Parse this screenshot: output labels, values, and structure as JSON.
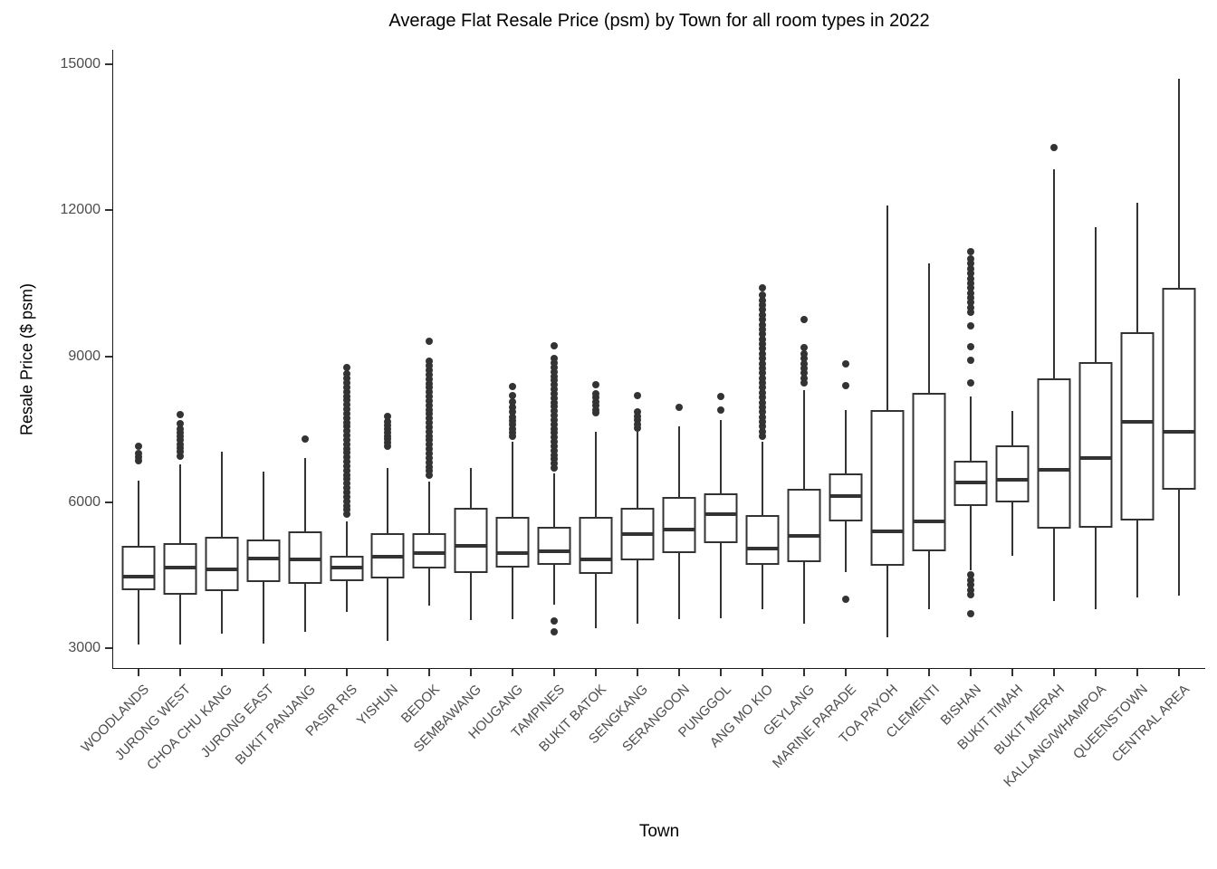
{
  "title": "Average Flat Resale Price (psm) by Town for all room types in 2022",
  "colors": {
    "box_border": "#333333",
    "median_line": "#333333",
    "outlier_dot": "#333333",
    "axis_line": "#1a1a1a",
    "tick_text": "#4d4d4d",
    "title_text": "#000000",
    "background": "#ffffff"
  },
  "chart_data": {
    "type": "boxplot",
    "title": "Average Flat Resale Price (psm) by Town for all room types in 2022",
    "xlabel": "Town",
    "ylabel": "Resale Price ($ psm)",
    "ylim": [
      3000,
      15000
    ],
    "y_ticks": [
      3000,
      6000,
      9000,
      12000,
      15000
    ],
    "grid": "off",
    "legend": "none",
    "box_fill": "#ffffff",
    "towns": [
      {
        "name": "WOODLANDS",
        "whisker_low": 3075,
        "q1": 4200,
        "median": 4475,
        "q3": 5100,
        "whisker_high": 6450,
        "outliers_low": [],
        "outliers_high": [
          6850,
          6925,
          7000,
          7150
        ]
      },
      {
        "name": "JURONG WEST",
        "whisker_low": 3075,
        "q1": 4100,
        "median": 4650,
        "q3": 5160,
        "whisker_high": 6770,
        "outliers_low": [],
        "outliers_high": [
          6950,
          7030,
          7110,
          7190,
          7270,
          7350,
          7430,
          7510,
          7620,
          7800
        ]
      },
      {
        "name": "CHOA CHU KANG",
        "whisker_low": 3290,
        "q1": 4180,
        "median": 4620,
        "q3": 5280,
        "whisker_high": 7030,
        "outliers_low": [],
        "outliers_high": []
      },
      {
        "name": "JURONG EAST",
        "whisker_low": 3100,
        "q1": 4350,
        "median": 4840,
        "q3": 5230,
        "whisker_high": 6630,
        "outliers_low": [],
        "outliers_high": []
      },
      {
        "name": "BUKIT PANJANG",
        "whisker_low": 3330,
        "q1": 4330,
        "median": 4820,
        "q3": 5400,
        "whisker_high": 6900,
        "outliers_low": [],
        "outliers_high": [
          7290
        ]
      },
      {
        "name": "PASIR RIS",
        "whisker_low": 3750,
        "q1": 4380,
        "median": 4650,
        "q3": 4900,
        "whisker_high": 5600,
        "outliers_low": [],
        "outliers_high": [
          5750,
          5840,
          5930,
          6020,
          6110,
          6200,
          6290,
          6380,
          6470,
          6560,
          6650,
          6740,
          6830,
          6920,
          7010,
          7100,
          7190,
          7280,
          7370,
          7460,
          7550,
          7640,
          7730,
          7820,
          7910,
          8000,
          8090,
          8180,
          8270,
          8360,
          8450,
          8540,
          8630,
          8760
        ]
      },
      {
        "name": "YISHUN",
        "whisker_low": 3150,
        "q1": 4440,
        "median": 4880,
        "q3": 5360,
        "whisker_high": 6700,
        "outliers_low": [],
        "outliers_high": [
          7150,
          7220,
          7290,
          7360,
          7430,
          7500,
          7580,
          7660,
          7760
        ]
      },
      {
        "name": "BEDOK",
        "whisker_low": 3880,
        "q1": 4630,
        "median": 4960,
        "q3": 5360,
        "whisker_high": 6420,
        "outliers_low": [],
        "outliers_high": [
          6550,
          6640,
          6730,
          6820,
          6910,
          7000,
          7090,
          7180,
          7270,
          7360,
          7450,
          7540,
          7630,
          7720,
          7810,
          7900,
          7990,
          8080,
          8170,
          8260,
          8350,
          8440,
          8530,
          8620,
          8710,
          8800,
          8900,
          9310
        ]
      },
      {
        "name": "SEMBAWANG",
        "whisker_low": 3580,
        "q1": 4550,
        "median": 5100,
        "q3": 5880,
        "whisker_high": 6700,
        "outliers_low": [],
        "outliers_high": []
      },
      {
        "name": "HOUGANG",
        "whisker_low": 3600,
        "q1": 4650,
        "median": 4950,
        "q3": 5690,
        "whisker_high": 7250,
        "outliers_low": [],
        "outliers_high": [
          7350,
          7430,
          7510,
          7590,
          7670,
          7750,
          7850,
          7950,
          8060,
          8200,
          8380
        ]
      },
      {
        "name": "TAMPINES",
        "whisker_low": 3900,
        "q1": 4710,
        "median": 4990,
        "q3": 5490,
        "whisker_high": 6600,
        "outliers_low": [
          3330,
          3550
        ],
        "outliers_high": [
          6700,
          6790,
          6880,
          6970,
          7060,
          7150,
          7240,
          7330,
          7420,
          7510,
          7600,
          7690,
          7780,
          7870,
          7960,
          8050,
          8140,
          8230,
          8320,
          8410,
          8500,
          8590,
          8680,
          8770,
          8860,
          8950,
          9220
        ]
      },
      {
        "name": "BUKIT BATOK",
        "whisker_low": 3400,
        "q1": 4520,
        "median": 4830,
        "q3": 5690,
        "whisker_high": 7440,
        "outliers_low": [],
        "outliers_high": [
          7830,
          7900,
          7980,
          8060,
          8150,
          8230,
          8410
        ]
      },
      {
        "name": "SENGKANG",
        "whisker_low": 3500,
        "q1": 4800,
        "median": 5340,
        "q3": 5890,
        "whisker_high": 7450,
        "outliers_low": [],
        "outliers_high": [
          7530,
          7600,
          7680,
          7760,
          7850,
          8200
        ]
      },
      {
        "name": "SERANGOON",
        "whisker_low": 3590,
        "q1": 4950,
        "median": 5440,
        "q3": 6100,
        "whisker_high": 7560,
        "outliers_low": [],
        "outliers_high": [
          7950
        ]
      },
      {
        "name": "PUNGGOL",
        "whisker_low": 3620,
        "q1": 5160,
        "median": 5750,
        "q3": 6180,
        "whisker_high": 7690,
        "outliers_low": [],
        "outliers_high": [
          7890,
          8170
        ]
      },
      {
        "name": "ANG MO KIO",
        "whisker_low": 3800,
        "q1": 4720,
        "median": 5050,
        "q3": 5740,
        "whisker_high": 7250,
        "outliers_low": [],
        "outliers_high": [
          7350,
          7450,
          7550,
          7650,
          7750,
          7850,
          7950,
          8050,
          8150,
          8250,
          8350,
          8450,
          8550,
          8650,
          8750,
          8850,
          8950,
          9050,
          9150,
          9250,
          9350,
          9450,
          9550,
          9650,
          9750,
          9850,
          9950,
          10050,
          10150,
          10250,
          10400
        ]
      },
      {
        "name": "GEYLANG",
        "whisker_low": 3500,
        "q1": 4770,
        "median": 5300,
        "q3": 6280,
        "whisker_high": 8300,
        "outliers_low": [],
        "outliers_high": [
          8450,
          8550,
          8650,
          8750,
          8850,
          8950,
          9050,
          9180,
          9750
        ]
      },
      {
        "name": "MARINE PARADE",
        "whisker_low": 4570,
        "q1": 5610,
        "median": 6130,
        "q3": 6600,
        "whisker_high": 7900,
        "outliers_low": [
          4000
        ],
        "outliers_high": [
          8400,
          8850
        ]
      },
      {
        "name": "TOA PAYOH",
        "whisker_low": 3220,
        "q1": 4700,
        "median": 5400,
        "q3": 7900,
        "whisker_high": 12100,
        "outliers_low": [],
        "outliers_high": []
      },
      {
        "name": "CLEMENTI",
        "whisker_low": 3800,
        "q1": 5000,
        "median": 5600,
        "q3": 8250,
        "whisker_high": 10900,
        "outliers_low": [],
        "outliers_high": []
      },
      {
        "name": "BISHAN",
        "whisker_low": 4600,
        "q1": 5920,
        "median": 6400,
        "q3": 6850,
        "whisker_high": 8170,
        "outliers_low": [
          3700,
          4100,
          4200,
          4300,
          4400,
          4500
        ],
        "outliers_high": [
          8450,
          8910,
          9190,
          9620,
          9900,
          10000,
          10100,
          10200,
          10300,
          10400,
          10500,
          10600,
          10700,
          10800,
          10900,
          11000,
          11150
        ]
      },
      {
        "name": "BUKIT TIMAH",
        "whisker_low": 4900,
        "q1": 6000,
        "median": 6460,
        "q3": 7175,
        "whisker_high": 7875,
        "outliers_low": [],
        "outliers_high": []
      },
      {
        "name": "BUKIT MERAH",
        "whisker_low": 3970,
        "q1": 5450,
        "median": 6670,
        "q3": 8550,
        "whisker_high": 12850,
        "outliers_low": [],
        "outliers_high": [
          13280
        ]
      },
      {
        "name": "KALLANG/WHAMPOA",
        "whisker_low": 3800,
        "q1": 5470,
        "median": 6900,
        "q3": 8870,
        "whisker_high": 11650,
        "outliers_low": [],
        "outliers_high": []
      },
      {
        "name": "QUEENSTOWN",
        "whisker_low": 4050,
        "q1": 5625,
        "median": 7650,
        "q3": 9500,
        "whisker_high": 12150,
        "outliers_low": [],
        "outliers_high": []
      },
      {
        "name": "CENTRAL AREA",
        "whisker_low": 4070,
        "q1": 6250,
        "median": 7450,
        "q3": 10400,
        "whisker_high": 14700,
        "outliers_low": [],
        "outliers_high": []
      }
    ]
  }
}
